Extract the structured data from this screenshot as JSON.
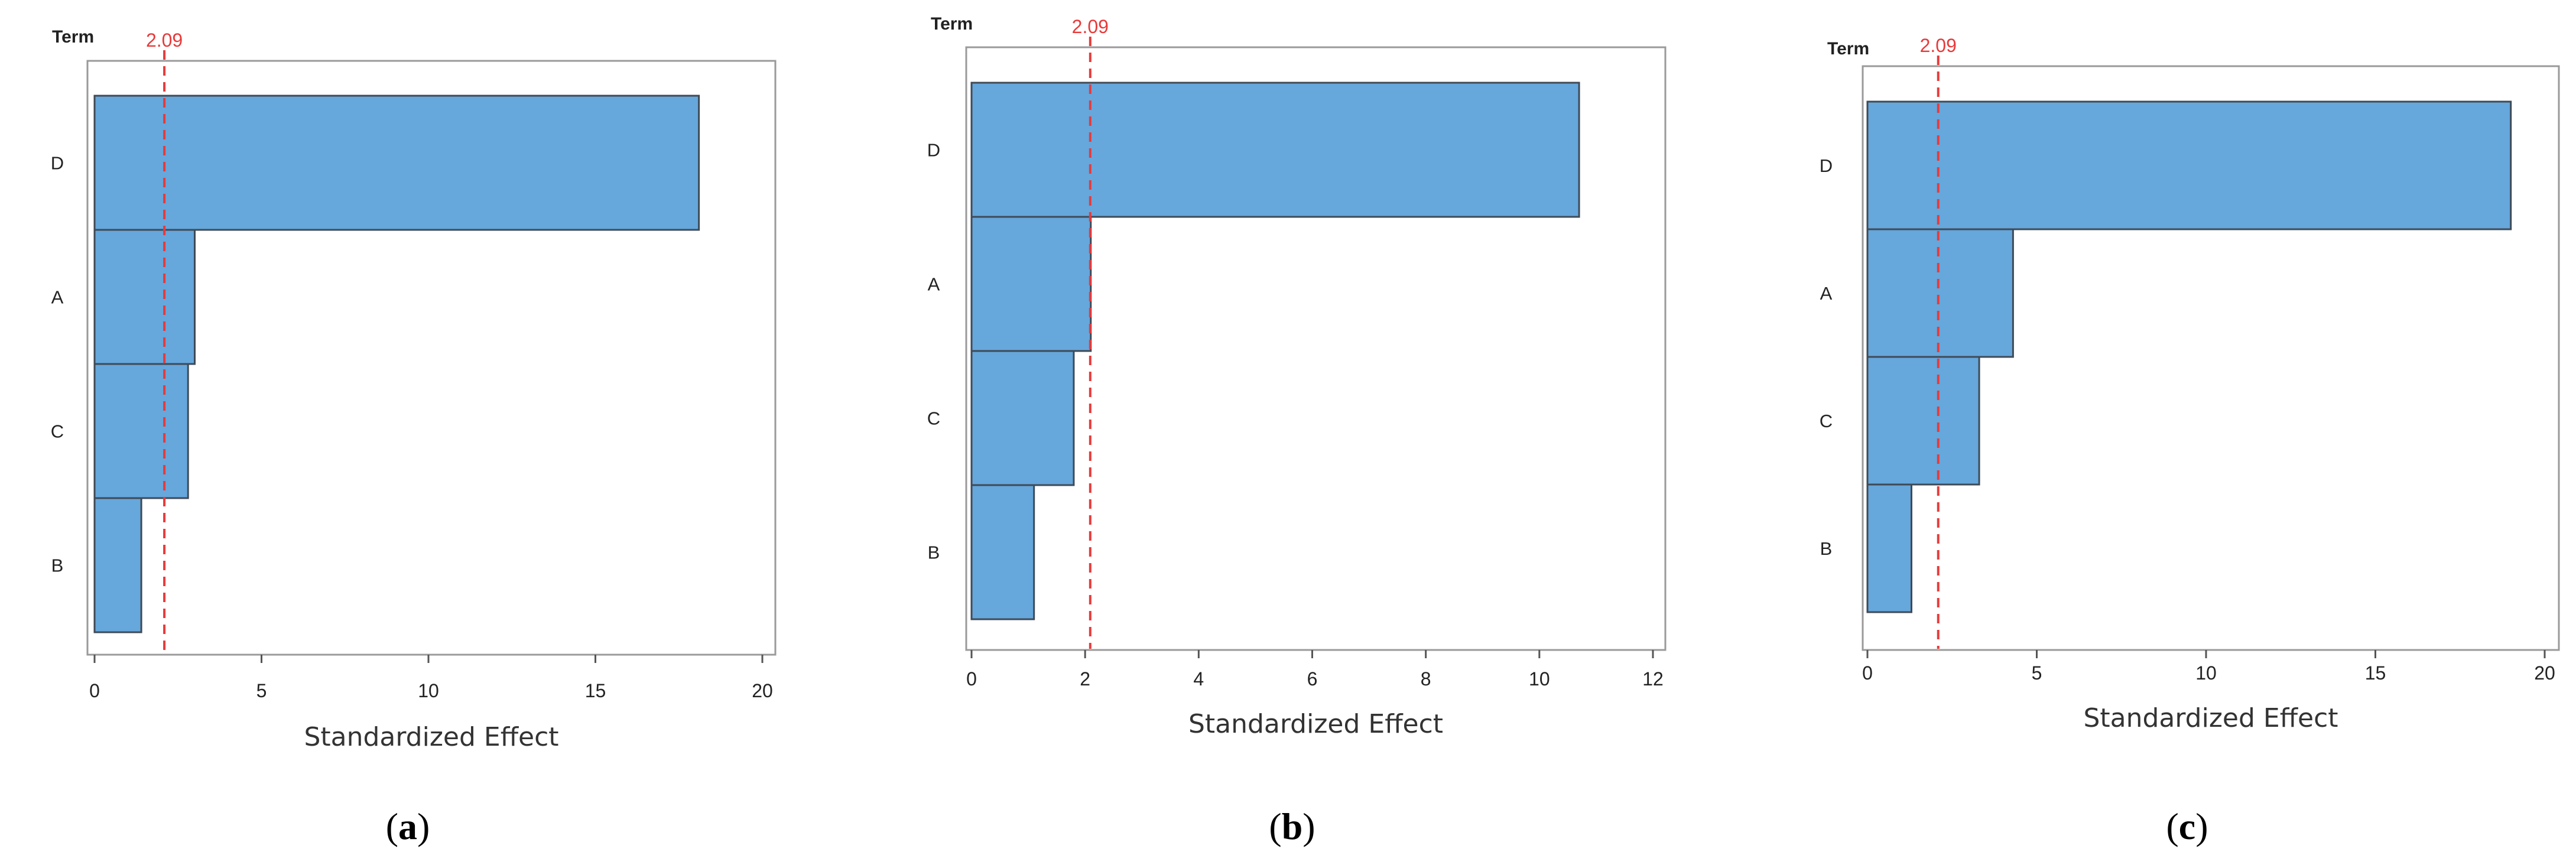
{
  "colors": {
    "bar": "#66a7dc",
    "bar_edge": "#3f4a55",
    "reference": "#e83a3a",
    "frame": "#9a9a9a"
  },
  "chart_data": [
    {
      "type": "bar",
      "orientation": "horizontal",
      "panel_label": "a",
      "ytitle": "Term",
      "xlabel": "Standardized Effect",
      "categories": [
        "D",
        "A",
        "C",
        "B"
      ],
      "values": [
        18.1,
        3.0,
        2.8,
        1.4
      ],
      "xlim": [
        0,
        20
      ],
      "xticks": [
        0,
        5,
        10,
        15,
        20
      ],
      "reference_line": {
        "value": 2.09,
        "label": "2.09"
      }
    },
    {
      "type": "bar",
      "orientation": "horizontal",
      "panel_label": "b",
      "ytitle": "Term",
      "xlabel": "Standardized Effect",
      "categories": [
        "D",
        "A",
        "C",
        "B"
      ],
      "values": [
        10.7,
        2.1,
        1.8,
        1.1
      ],
      "xlim": [
        0,
        12
      ],
      "xticks": [
        0,
        2,
        4,
        6,
        8,
        10,
        12
      ],
      "reference_line": {
        "value": 2.09,
        "label": "2.09"
      }
    },
    {
      "type": "bar",
      "orientation": "horizontal",
      "panel_label": "c",
      "ytitle": "Term",
      "xlabel": "Standardized Effect",
      "categories": [
        "D",
        "A",
        "C",
        "B"
      ],
      "values": [
        19.0,
        4.3,
        3.3,
        1.3
      ],
      "xlim": [
        0,
        20
      ],
      "xticks": [
        0,
        5,
        10,
        15,
        20
      ],
      "reference_line": {
        "value": 2.09,
        "label": "2.09"
      }
    }
  ]
}
